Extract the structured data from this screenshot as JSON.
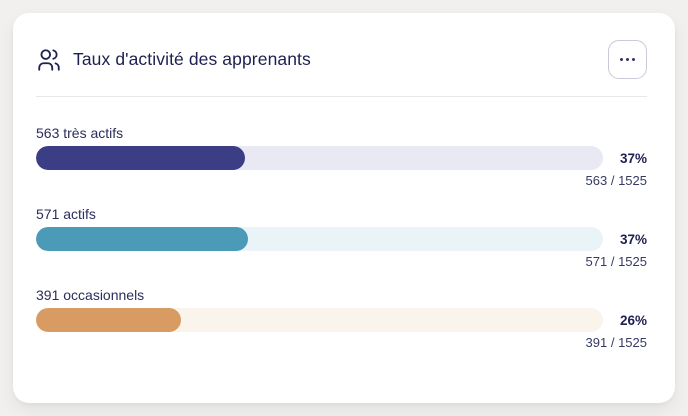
{
  "page": {
    "background_color": "#f1f0ee"
  },
  "card": {
    "title": "Taux d'activité des apprenants",
    "title_icon": "users-icon",
    "title_color": "#1d2050",
    "menu_button": {
      "icon": "ellipsis-icon"
    }
  },
  "chart_data": {
    "type": "bar",
    "orientation": "horizontal",
    "title": "Taux d'activité des apprenants",
    "total": 1525,
    "rows": [
      {
        "label": "563 très actifs",
        "value": 563,
        "total": 1525,
        "percent_label": "37%",
        "fraction_label": "563 / 1525",
        "bar_color": "#3b3e85",
        "track_color": "#e9e9f3"
      },
      {
        "label": "571 actifs",
        "value": 571,
        "total": 1525,
        "percent_label": "37%",
        "fraction_label": "571 / 1525",
        "bar_color": "#4a9ab8",
        "track_color": "#eaf3f7"
      },
      {
        "label": "391 occasionnels",
        "value": 391,
        "total": 1525,
        "percent_label": "26%",
        "fraction_label": "391 / 1525",
        "bar_color": "#d89c63",
        "track_color": "#faf4ed"
      }
    ]
  }
}
